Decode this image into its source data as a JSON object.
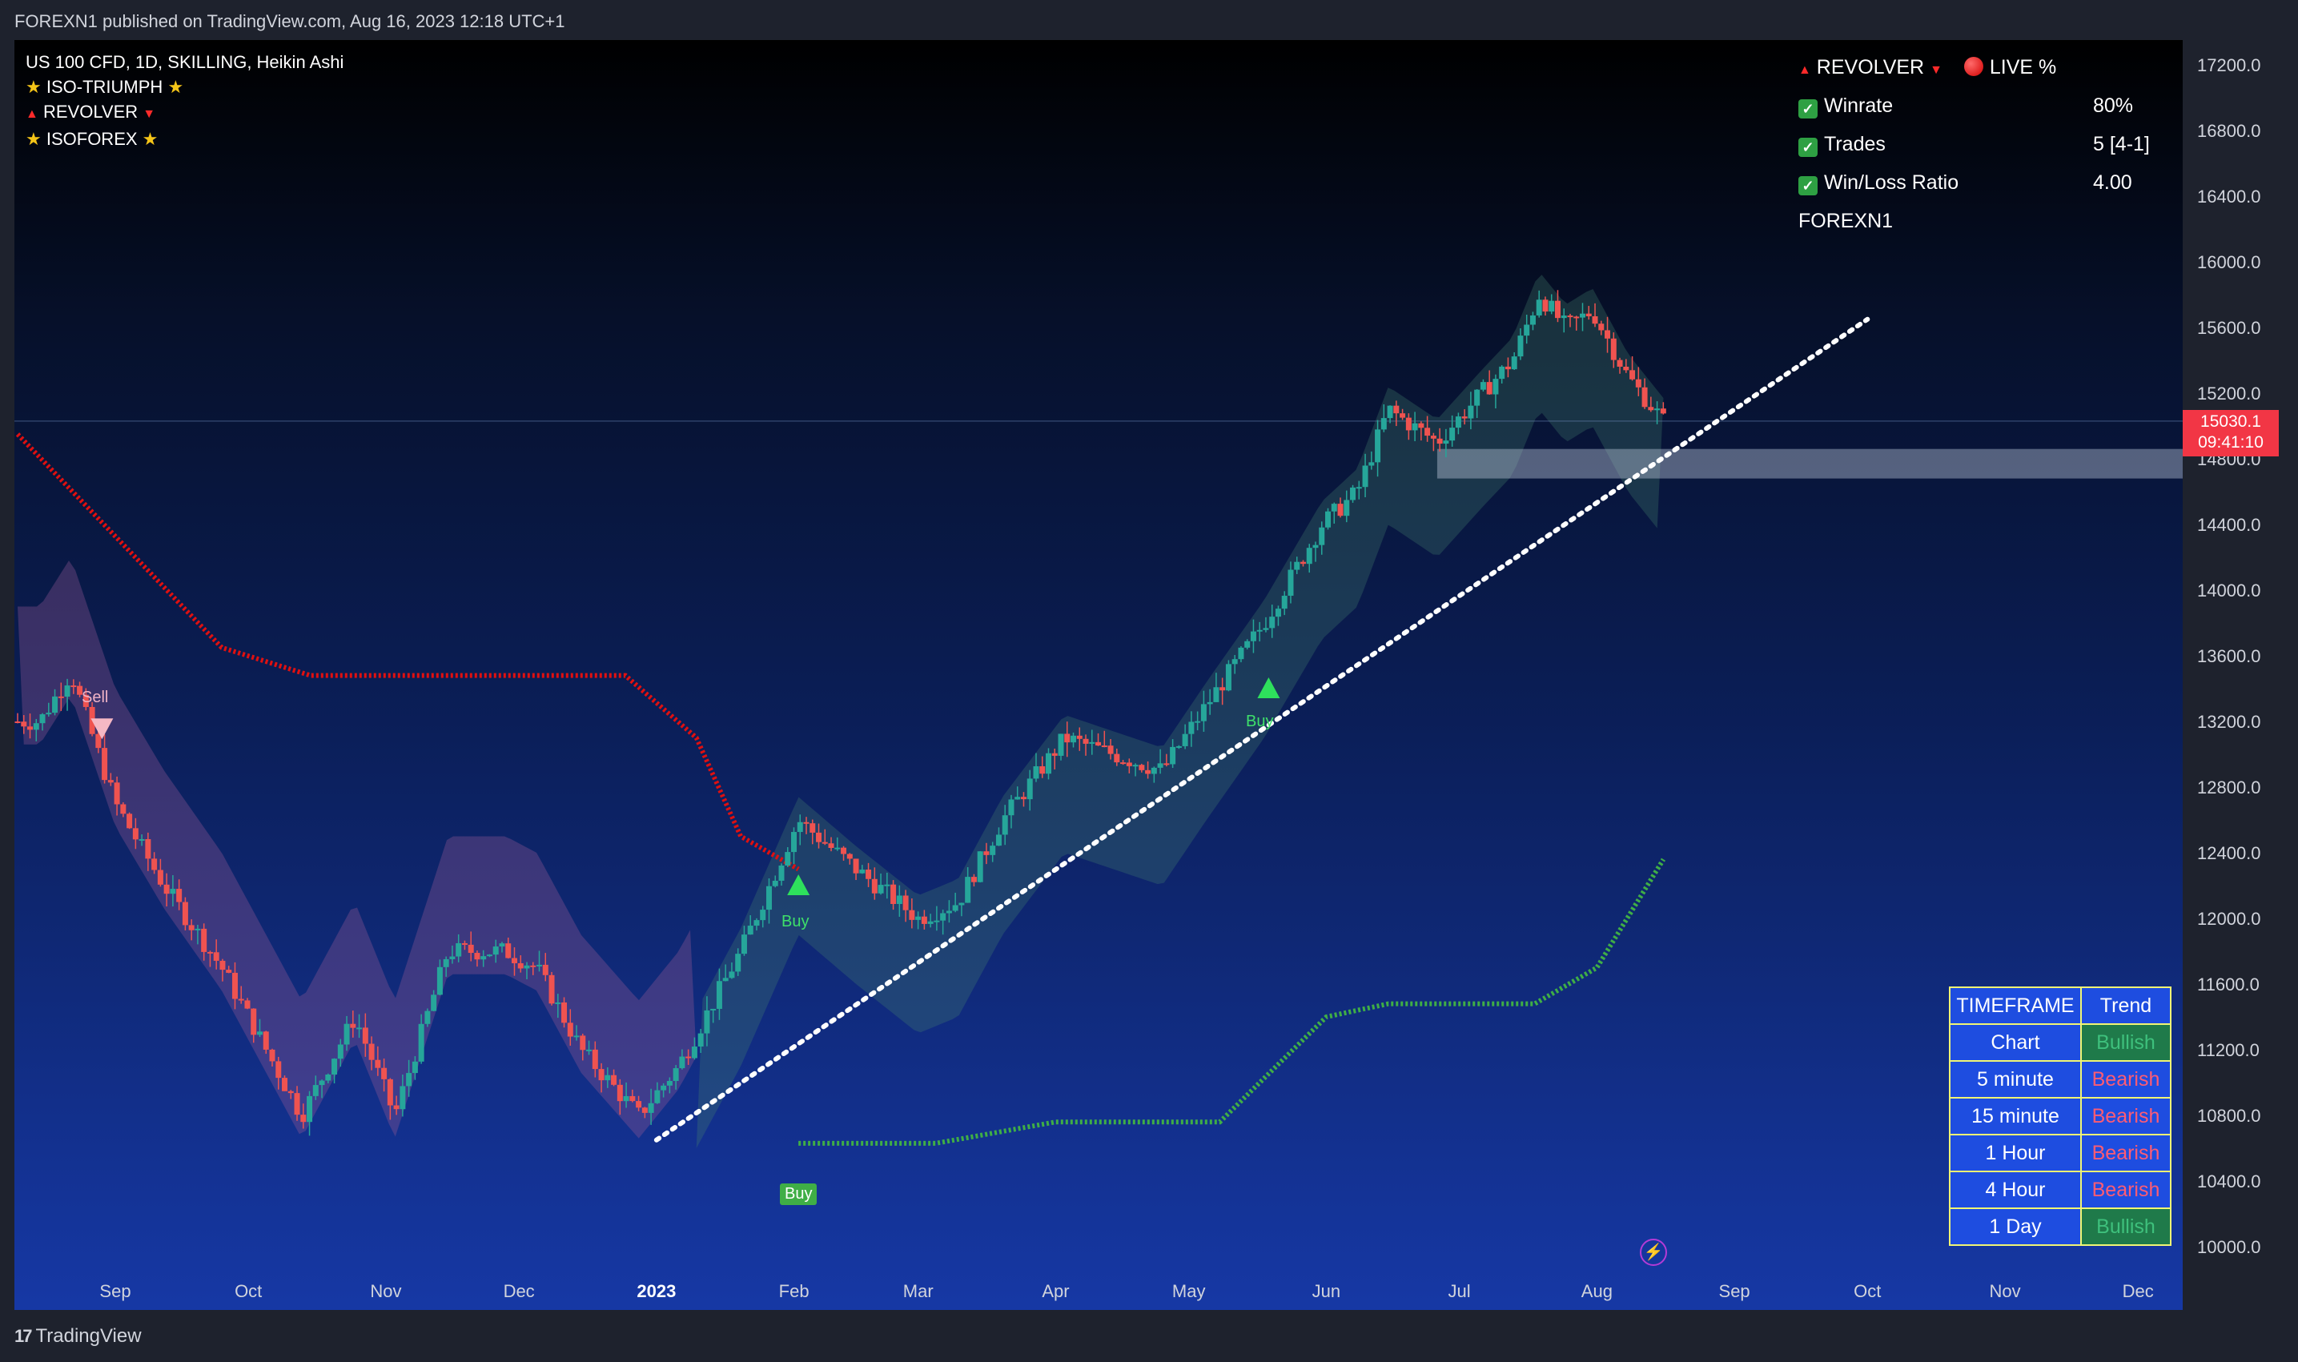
{
  "header": {
    "published": "FOREXN1 published on TradingView.com, Aug 16, 2023 12:18 UTC+1"
  },
  "legend": {
    "symbol_line": "US 100 CFD, 1D, SKILLING, Heikin Ashi",
    "indicators": [
      "ISO-TRIUMPH",
      "REVOLVER",
      "ISOFOREX"
    ]
  },
  "stats_panel": {
    "title_left": "REVOLVER",
    "title_right": "LIVE %",
    "rows": [
      {
        "label": "Winrate",
        "value": "80%"
      },
      {
        "label": "Trades",
        "value": "5 [4-1]"
      },
      {
        "label": "Win/Loss Ratio",
        "value": "4.00"
      }
    ],
    "footer": "FOREXN1"
  },
  "trend_table": {
    "headers": [
      "TIMEFRAME",
      "Trend"
    ],
    "rows": [
      {
        "timeframe": "Chart",
        "trend": "Bullish"
      },
      {
        "timeframe": "5 minute",
        "trend": "Bearish"
      },
      {
        "timeframe": "15 minute",
        "trend": "Bearish"
      },
      {
        "timeframe": "1 Hour",
        "trend": "Bearish"
      },
      {
        "timeframe": "4 Hour",
        "trend": "Bearish"
      },
      {
        "timeframe": "1 Day",
        "trend": "Bullish"
      }
    ]
  },
  "price_axis": {
    "labels": [
      "17200.0",
      "16800.0",
      "16400.0",
      "16000.0",
      "15600.0",
      "15200.0",
      "14800.0",
      "14400.0",
      "14000.0",
      "13600.0",
      "13200.0",
      "12800.0",
      "12400.0",
      "12000.0",
      "11600.0",
      "11200.0",
      "10800.0",
      "10400.0",
      "10000.0"
    ],
    "current_price": "15030.1",
    "countdown": "09:41:10"
  },
  "time_axis": {
    "labels": [
      "Sep",
      "Oct",
      "Nov",
      "Dec",
      "2023",
      "Feb",
      "Mar",
      "Apr",
      "May",
      "Jun",
      "Jul",
      "Aug",
      "Sep",
      "Oct",
      "Nov",
      "Dec"
    ]
  },
  "signals": {
    "sell": "Sell",
    "buy": "Buy"
  },
  "footer": {
    "brand": "TradingView",
    "brand_mark": "17"
  },
  "colors": {
    "bull": "#26a69a",
    "bear": "#ef5350",
    "revolver_line": "#e01010",
    "support_line": "#3fae46",
    "trend_line": "#ffffff"
  },
  "chart_data": {
    "type": "candlestick",
    "title": "US 100 CFD, 1D, SKILLING, Heikin Ashi",
    "ylim": [
      9950,
      17300
    ],
    "y_ticks": [
      17200,
      16800,
      16400,
      16000,
      15600,
      15200,
      14800,
      14400,
      14000,
      13600,
      13200,
      12800,
      12400,
      12000,
      11600,
      11200,
      10800,
      10400,
      10000
    ],
    "last_price": 15030.1,
    "price_path": [
      [
        "2022-08-15",
        13200
      ],
      [
        "2022-08-22",
        13500
      ],
      [
        "2022-09-01",
        12700
      ],
      [
        "2022-09-12",
        12200
      ],
      [
        "2022-09-25",
        11700
      ],
      [
        "2022-10-05",
        11200
      ],
      [
        "2022-10-13",
        10800
      ],
      [
        "2022-10-25",
        11400
      ],
      [
        "2022-11-03",
        10800
      ],
      [
        "2022-11-15",
        11800
      ],
      [
        "2022-11-28",
        11800
      ],
      [
        "2022-12-05",
        11700
      ],
      [
        "2022-12-15",
        11200
      ],
      [
        "2022-12-28",
        10800
      ],
      [
        "2023-01-06",
        11100
      ],
      [
        "2023-01-20",
        11800
      ],
      [
        "2023-02-02",
        12600
      ],
      [
        "2023-02-15",
        12300
      ],
      [
        "2023-03-01",
        12000
      ],
      [
        "2023-03-10",
        12100
      ],
      [
        "2023-03-20",
        12600
      ],
      [
        "2023-04-03",
        13100
      ],
      [
        "2023-04-14",
        13000
      ],
      [
        "2023-04-25",
        12900
      ],
      [
        "2023-05-05",
        13300
      ],
      [
        "2023-05-18",
        13800
      ],
      [
        "2023-05-31",
        14400
      ],
      [
        "2023-06-08",
        14600
      ],
      [
        "2023-06-15",
        15100
      ],
      [
        "2023-06-26",
        14900
      ],
      [
        "2023-07-06",
        15200
      ],
      [
        "2023-07-13",
        15400
      ],
      [
        "2023-07-19",
        15800
      ],
      [
        "2023-07-25",
        15600
      ],
      [
        "2023-07-31",
        15700
      ],
      [
        "2023-08-08",
        15300
      ],
      [
        "2023-08-16",
        15030
      ]
    ],
    "zone": {
      "from": "2023-06-26",
      "top": 14860,
      "bottom": 14680
    },
    "signals": [
      {
        "label": "Sell",
        "date": "2022-08-29",
        "price": 13150
      },
      {
        "label": "Buy",
        "date": "2023-02-02",
        "price": 12200
      },
      {
        "label": "Buy",
        "date": "2023-05-19",
        "price": 13400
      }
    ]
  }
}
